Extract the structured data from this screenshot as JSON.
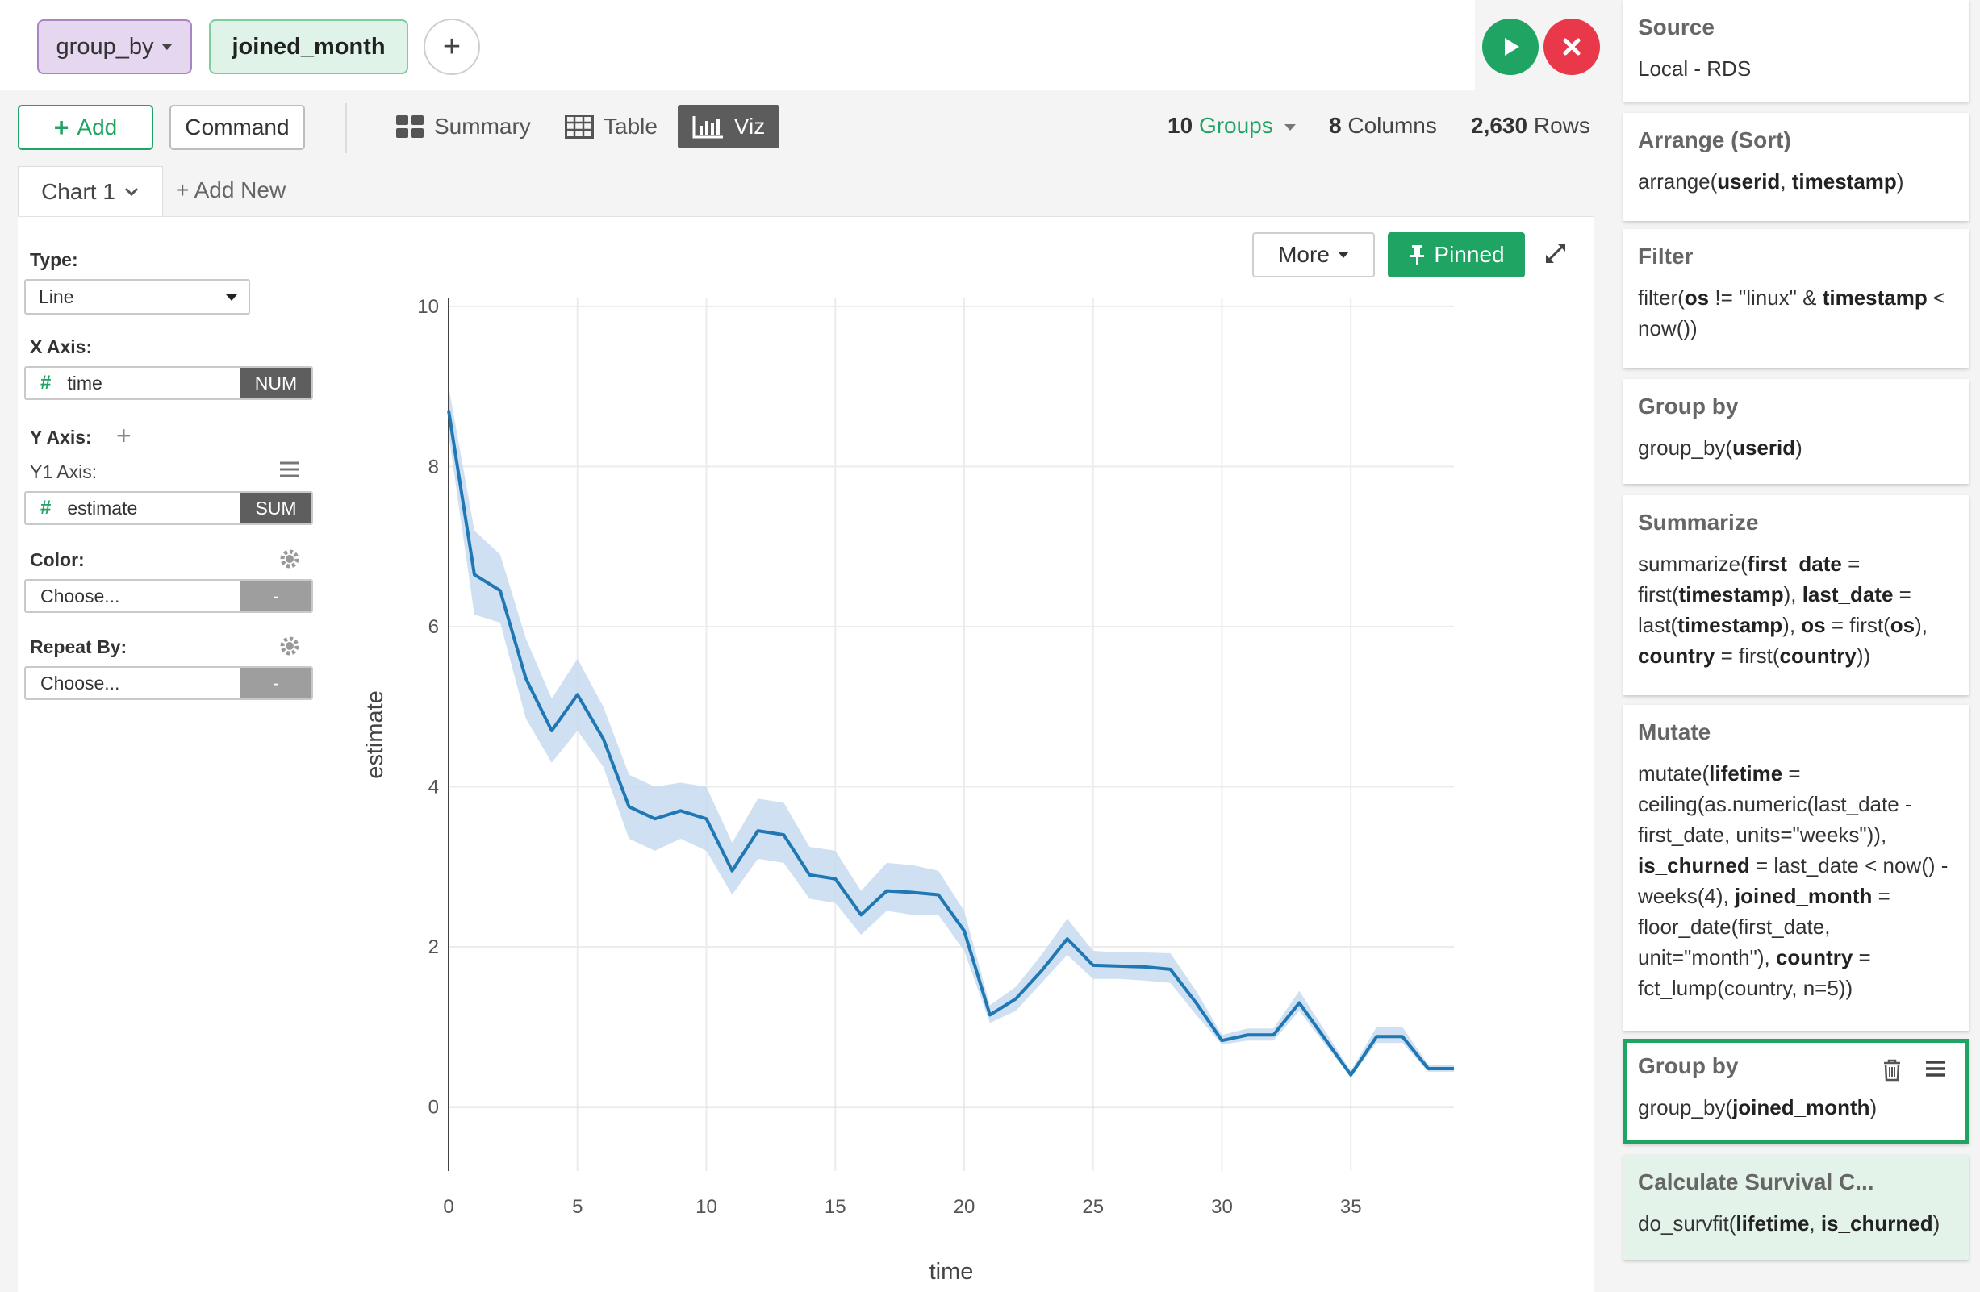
{
  "top": {
    "pill_group_by": "group_by",
    "pill_joined_month": "joined_month",
    "plus": "+"
  },
  "toolbar": {
    "add_label": "Add",
    "command_label": "Command",
    "tab_summary": "Summary",
    "tab_table": "Table",
    "tab_viz": "Viz",
    "groups_count": "10",
    "groups_label": "Groups",
    "columns_count": "8",
    "columns_label": "Columns",
    "rows_count": "2,630",
    "rows_label": "Rows"
  },
  "chart_tabs": {
    "current": "Chart 1",
    "add_new": "+ Add New"
  },
  "config": {
    "type_label": "Type:",
    "type_value": "Line",
    "x_axis_label": "X Axis:",
    "x_field": "time",
    "x_tag": "NUM",
    "y_axis_label": "Y Axis:",
    "y1_label": "Y1 Axis:",
    "y_field": "estimate",
    "y_tag": "SUM",
    "color_label": "Color:",
    "color_placeholder": "Choose...",
    "color_tag": "-",
    "repeat_label": "Repeat By:",
    "repeat_placeholder": "Choose...",
    "repeat_tag": "-"
  },
  "chart_controls": {
    "more_label": "More",
    "pinned_label": "Pinned"
  },
  "chart_data": {
    "type": "line",
    "xlabel": "time",
    "ylabel": "estimate",
    "xlim": [
      0,
      39
    ],
    "ylim": [
      -0.8,
      10.1
    ],
    "x_ticks": [
      0,
      5,
      10,
      15,
      20,
      25,
      30,
      35
    ],
    "y_ticks": [
      0,
      2,
      4,
      6,
      8,
      10
    ],
    "grid": true,
    "line_color": "#1f77b4",
    "band_color": "#c6dbef",
    "series": [
      {
        "x": [
          0,
          1,
          2,
          3,
          4,
          5,
          6,
          7,
          8,
          9,
          10,
          11,
          12,
          13,
          14,
          15,
          16,
          17,
          18,
          19,
          20,
          21,
          22,
          23,
          24,
          25,
          26,
          27,
          28,
          29,
          30,
          31,
          32,
          33,
          34,
          35,
          36,
          37,
          38,
          39
        ],
        "y": [
          8.7,
          6.65,
          6.45,
          5.35,
          4.7,
          5.15,
          4.6,
          3.75,
          3.6,
          3.7,
          3.6,
          2.95,
          3.45,
          3.4,
          2.9,
          2.85,
          2.4,
          2.7,
          2.68,
          2.65,
          2.2,
          1.15,
          1.35,
          1.7,
          2.1,
          1.77,
          1.76,
          1.75,
          1.72,
          1.3,
          0.83,
          0.9,
          0.9,
          1.3,
          0.85,
          0.4,
          0.88,
          0.88,
          0.48,
          0.48
        ],
        "lower": [
          8.4,
          6.15,
          6.05,
          4.85,
          4.3,
          4.7,
          4.25,
          3.35,
          3.2,
          3.35,
          3.2,
          2.65,
          3.1,
          3.05,
          2.6,
          2.55,
          2.15,
          2.45,
          2.4,
          2.4,
          1.95,
          1.05,
          1.2,
          1.55,
          1.9,
          1.6,
          1.6,
          1.58,
          1.55,
          1.15,
          0.78,
          0.83,
          0.83,
          1.2,
          0.78,
          0.38,
          0.8,
          0.8,
          0.44,
          0.44
        ],
        "upper": [
          9.0,
          7.2,
          6.9,
          5.85,
          5.1,
          5.6,
          5.0,
          4.15,
          4.0,
          4.05,
          4.0,
          3.3,
          3.85,
          3.8,
          3.25,
          3.2,
          2.7,
          3.05,
          3.02,
          2.95,
          2.45,
          1.27,
          1.5,
          1.9,
          2.35,
          1.95,
          1.93,
          1.93,
          1.92,
          1.45,
          0.9,
          0.98,
          0.98,
          1.45,
          0.95,
          0.45,
          1.0,
          1.0,
          0.53,
          0.53
        ]
      }
    ]
  },
  "steps": [
    {
      "title": "Source",
      "code": "Local - RDS"
    },
    {
      "title": "Arrange (Sort)",
      "code_parts": [
        "arrange(",
        "userid",
        ", ",
        "timestamp",
        ")"
      ]
    },
    {
      "title": "Filter",
      "code_parts": [
        "filter(",
        "os",
        " != \"linux\" & ",
        "timestamp",
        " < now())"
      ]
    },
    {
      "title": "Group by",
      "code_parts": [
        "group_by(",
        "userid",
        ")"
      ]
    },
    {
      "title": "Summarize",
      "code_parts": [
        "summarize(",
        "first_date",
        " = first(",
        "timestamp",
        "), ",
        "last_date",
        " = last(",
        "timestamp",
        "), ",
        "os",
        " = first(",
        "os",
        "), ",
        "country",
        " = first(",
        "country",
        "))"
      ]
    },
    {
      "title": "Mutate",
      "code_parts": [
        "mutate(",
        "lifetime",
        " = ceiling(as.numeric(last_date - first_date, units=\"weeks\")), ",
        "is_churned",
        " = last_date < now() - weeks(4), ",
        "joined_month",
        " = floor_date(first_date, unit=\"month\"), ",
        "country",
        " = fct_lump(country, n=5))"
      ]
    },
    {
      "title": "Group by",
      "code_parts": [
        "group_by(",
        "joined_month",
        ")"
      ]
    },
    {
      "title": "Calculate Survival C...",
      "code_parts": [
        "do_survfit(",
        "lifetime",
        ", ",
        "is_churned",
        ")"
      ]
    }
  ]
}
